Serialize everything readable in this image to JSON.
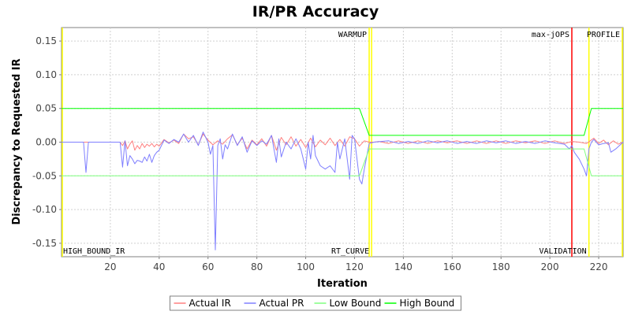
{
  "chart_data": {
    "type": "line",
    "title": "IR/PR Accuracy",
    "xlabel": "Iteration",
    "ylabel": "Discrepancy to Requested IR",
    "xlim": [
      0,
      230
    ],
    "ylim": [
      -0.17,
      0.17
    ],
    "x_ticks": [
      20,
      40,
      60,
      80,
      100,
      120,
      140,
      160,
      180,
      200,
      220
    ],
    "y_ticks": [
      -0.15,
      -0.1,
      -0.05,
      0.0,
      0.05,
      0.1,
      0.15
    ],
    "y_tick_labels": [
      "-0.15",
      "-0.10",
      "-0.05",
      "0.00",
      "0.05",
      "0.10",
      "0.15"
    ],
    "grid": true,
    "legend_position": "bottom",
    "markers": [
      {
        "label": "HIGH_BOUND_IR",
        "x": 0,
        "color": "#ffff00",
        "label_pos": "bottom-right"
      },
      {
        "label": "WARMUP",
        "x": 126,
        "color": "#ffff00",
        "label_pos": "top-left"
      },
      {
        "label": "RT_CURVE",
        "x": 127,
        "color": "#ffff00",
        "label_pos": "bottom-left"
      },
      {
        "label": "max-jOPS",
        "x": 209,
        "color": "#ff0000",
        "label_pos": "top-left"
      },
      {
        "label": "VALIDATION",
        "x": 216,
        "color": "#ffff00",
        "label_pos": "bottom-left"
      },
      {
        "label": "PROFILE",
        "x": 230,
        "color": "#ffff00",
        "label_pos": "top-left"
      }
    ],
    "series": [
      {
        "name": "Actual IR",
        "color": "#ff7f7f",
        "points": [
          [
            0,
            0
          ],
          [
            8,
            0
          ],
          [
            16,
            0
          ],
          [
            24,
            0
          ],
          [
            25,
            -0.005
          ],
          [
            26,
            0.002
          ],
          [
            27,
            -0.01
          ],
          [
            28,
            -0.003
          ],
          [
            29,
            0.002
          ],
          [
            30,
            -0.012
          ],
          [
            31,
            -0.005
          ],
          [
            32,
            -0.01
          ],
          [
            33,
            -0.002
          ],
          [
            34,
            -0.008
          ],
          [
            35,
            -0.003
          ],
          [
            36,
            -0.006
          ],
          [
            37,
            -0.002
          ],
          [
            38,
            -0.007
          ],
          [
            39,
            -0.003
          ],
          [
            40,
            -0.006
          ],
          [
            42,
            0.004
          ],
          [
            44,
            -0.001
          ],
          [
            46,
            0.003
          ],
          [
            48,
            -0.002
          ],
          [
            50,
            0.012
          ],
          [
            52,
            0.005
          ],
          [
            54,
            0.008
          ],
          [
            56,
            -0.004
          ],
          [
            58,
            0.012
          ],
          [
            60,
            0.003
          ],
          [
            62,
            -0.004
          ],
          [
            64,
            0.002
          ],
          [
            66,
            -0.003
          ],
          [
            68,
            0.005
          ],
          [
            70,
            0.011
          ],
          [
            72,
            -0.004
          ],
          [
            74,
            0.006
          ],
          [
            76,
            -0.01
          ],
          [
            78,
            0.003
          ],
          [
            80,
            -0.004
          ],
          [
            82,
            0.005
          ],
          [
            84,
            -0.006
          ],
          [
            86,
            0.01
          ],
          [
            88,
            -0.012
          ],
          [
            90,
            0.007
          ],
          [
            92,
            -0.004
          ],
          [
            94,
            0.008
          ],
          [
            96,
            -0.006
          ],
          [
            98,
            0.004
          ],
          [
            100,
            -0.008
          ],
          [
            102,
            0.006
          ],
          [
            104,
            -0.007
          ],
          [
            106,
            0.003
          ],
          [
            108,
            -0.004
          ],
          [
            110,
            0.006
          ],
          [
            112,
            -0.005
          ],
          [
            114,
            0.004
          ],
          [
            116,
            -0.006
          ],
          [
            118,
            0.008
          ],
          [
            120,
            0.005
          ],
          [
            122,
            -0.006
          ],
          [
            124,
            0.002
          ],
          [
            126,
            0
          ],
          [
            128,
            0
          ],
          [
            130,
            0.001
          ],
          [
            134,
            -0.002
          ],
          [
            138,
            0.002
          ],
          [
            142,
            -0.002
          ],
          [
            146,
            0.002
          ],
          [
            150,
            -0.002
          ],
          [
            154,
            0.002
          ],
          [
            158,
            -0.001
          ],
          [
            162,
            0.002
          ],
          [
            166,
            -0.002
          ],
          [
            170,
            0.002
          ],
          [
            174,
            -0.002
          ],
          [
            178,
            0.002
          ],
          [
            182,
            -0.002
          ],
          [
            186,
            0.002
          ],
          [
            190,
            -0.001
          ],
          [
            194,
            0.002
          ],
          [
            198,
            -0.002
          ],
          [
            202,
            0.002
          ],
          [
            206,
            -0.002
          ],
          [
            209,
            0.001
          ],
          [
            212,
            0
          ],
          [
            215,
            -0.002
          ],
          [
            218,
            0.006
          ],
          [
            220,
            -0.002
          ],
          [
            222,
            0.003
          ],
          [
            224,
            -0.004
          ],
          [
            226,
            0.002
          ],
          [
            228,
            -0.003
          ],
          [
            230,
            0
          ]
        ]
      },
      {
        "name": "Actual PR",
        "color": "#7f7fff",
        "points": [
          [
            0,
            0
          ],
          [
            9,
            0
          ],
          [
            10,
            -0.045
          ],
          [
            11,
            0
          ],
          [
            20,
            0
          ],
          [
            24,
            0
          ],
          [
            25,
            -0.037
          ],
          [
            26,
            0.002
          ],
          [
            27,
            -0.035
          ],
          [
            28,
            -0.02
          ],
          [
            29,
            -0.025
          ],
          [
            30,
            -0.032
          ],
          [
            31,
            -0.027
          ],
          [
            32,
            -0.028
          ],
          [
            33,
            -0.03
          ],
          [
            34,
            -0.022
          ],
          [
            35,
            -0.028
          ],
          [
            36,
            -0.018
          ],
          [
            37,
            -0.03
          ],
          [
            38,
            -0.02
          ],
          [
            39,
            -0.015
          ],
          [
            40,
            -0.012
          ],
          [
            42,
            0.003
          ],
          [
            44,
            -0.002
          ],
          [
            46,
            0.004
          ],
          [
            48,
            0.0
          ],
          [
            50,
            0.012
          ],
          [
            52,
            0.0
          ],
          [
            54,
            0.01
          ],
          [
            56,
            -0.005
          ],
          [
            58,
            0.015
          ],
          [
            60,
            0.0
          ],
          [
            61,
            -0.018
          ],
          [
            62,
            -0.005
          ],
          [
            63,
            -0.16
          ],
          [
            64,
            -0.005
          ],
          [
            65,
            0.005
          ],
          [
            66,
            -0.025
          ],
          [
            67,
            -0.004
          ],
          [
            68,
            -0.01
          ],
          [
            70,
            0.012
          ],
          [
            72,
            -0.005
          ],
          [
            74,
            0.008
          ],
          [
            76,
            -0.015
          ],
          [
            78,
            0.002
          ],
          [
            80,
            -0.005
          ],
          [
            82,
            0.002
          ],
          [
            84,
            -0.003
          ],
          [
            86,
            0.01
          ],
          [
            88,
            -0.03
          ],
          [
            89,
            0.005
          ],
          [
            90,
            -0.022
          ],
          [
            92,
            0.0
          ],
          [
            94,
            -0.01
          ],
          [
            96,
            0.005
          ],
          [
            98,
            -0.01
          ],
          [
            100,
            -0.04
          ],
          [
            101,
            0.0
          ],
          [
            102,
            -0.025
          ],
          [
            103,
            0.01
          ],
          [
            104,
            -0.02
          ],
          [
            106,
            -0.035
          ],
          [
            108,
            -0.04
          ],
          [
            110,
            -0.035
          ],
          [
            112,
            -0.045
          ],
          [
            113,
            0.0
          ],
          [
            114,
            -0.025
          ],
          [
            116,
            0.005
          ],
          [
            118,
            -0.055
          ],
          [
            119,
            0.01
          ],
          [
            120,
            0.005
          ],
          [
            122,
            -0.055
          ],
          [
            123,
            -0.062
          ],
          [
            124,
            -0.04
          ],
          [
            126,
            -0.002
          ],
          [
            128,
            0
          ],
          [
            134,
            0.002
          ],
          [
            138,
            -0.002
          ],
          [
            142,
            0.001
          ],
          [
            146,
            -0.002
          ],
          [
            150,
            0.002
          ],
          [
            154,
            -0.001
          ],
          [
            158,
            0.002
          ],
          [
            162,
            -0.002
          ],
          [
            166,
            0.001
          ],
          [
            170,
            -0.002
          ],
          [
            174,
            0.002
          ],
          [
            178,
            -0.001
          ],
          [
            182,
            0.002
          ],
          [
            186,
            -0.002
          ],
          [
            190,
            0.001
          ],
          [
            194,
            -0.002
          ],
          [
            198,
            0.002
          ],
          [
            202,
            -0.001
          ],
          [
            206,
            -0.003
          ],
          [
            208,
            -0.01
          ],
          [
            209,
            -0.005
          ],
          [
            210,
            -0.015
          ],
          [
            212,
            -0.025
          ],
          [
            214,
            -0.04
          ],
          [
            215,
            -0.05
          ],
          [
            216,
            -0.01
          ],
          [
            217,
            0.0
          ],
          [
            218,
            0.004
          ],
          [
            220,
            -0.004
          ],
          [
            222,
            -0.002
          ],
          [
            224,
            -0.001
          ],
          [
            225,
            -0.015
          ],
          [
            227,
            -0.01
          ],
          [
            230,
            0.0
          ]
        ]
      },
      {
        "name": "Low Bound",
        "color": "#7fff7f",
        "points": [
          [
            0,
            -0.05
          ],
          [
            122,
            -0.05
          ],
          [
            126,
            -0.01
          ],
          [
            214,
            -0.01
          ],
          [
            217,
            -0.05
          ],
          [
            230,
            -0.05
          ]
        ]
      },
      {
        "name": "High Bound",
        "color": "#00ff00",
        "points": [
          [
            0,
            0.05
          ],
          [
            122,
            0.05
          ],
          [
            126,
            0.01
          ],
          [
            214,
            0.01
          ],
          [
            217,
            0.05
          ],
          [
            230,
            0.05
          ]
        ]
      }
    ]
  }
}
